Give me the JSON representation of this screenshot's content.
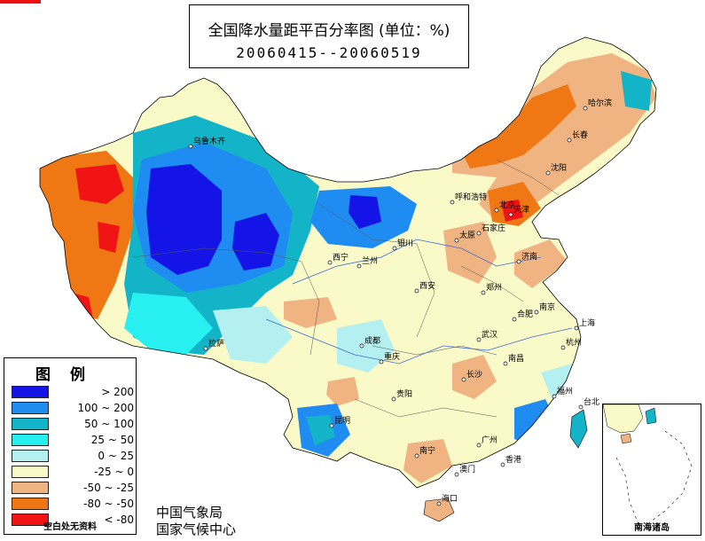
{
  "title": {
    "main": "全国降水量距平百分率图 (单位：%)",
    "period": "20060415--20060519"
  },
  "colors": {
    "gt200": "#1414e6",
    "r100_200": "#1e8cf0",
    "r50_100": "#14b4c8",
    "r25_50": "#28f0f0",
    "r0_25": "#b4f0f0",
    "rm25_0": "#fafac8",
    "rm50_m25": "#f0b482",
    "rm80_m50": "#f07814",
    "lt_m80": "#f01414"
  },
  "legend": {
    "title": "图例",
    "items": [
      {
        "label": "> 200",
        "color": "#1414e6"
      },
      {
        "label": "100 ~ 200",
        "color": "#1e8cf0"
      },
      {
        "label": "50 ~ 100",
        "color": "#14b4c8"
      },
      {
        "label": "25 ~ 50",
        "color": "#28f0f0"
      },
      {
        "label": "0 ~ 25",
        "color": "#b4f0f0"
      },
      {
        "label": "-25 ~ 0",
        "color": "#fafac8"
      },
      {
        "label": "-50 ~ -25",
        "color": "#f0b482"
      },
      {
        "label": "-80 ~ -50",
        "color": "#f07814"
      },
      {
        "label": "< -80",
        "color": "#f01414"
      }
    ],
    "footer": "空白处无资料"
  },
  "issuers": [
    "中国气象局",
    "国家气候中心"
  ],
  "inset_label": "南海诸岛",
  "cities": [
    {
      "name": "乌鲁木齐"
    },
    {
      "name": "哈尔滨"
    },
    {
      "name": "长春"
    },
    {
      "name": "沈阳"
    },
    {
      "name": "呼和浩特"
    },
    {
      "name": "北京"
    },
    {
      "name": "天津"
    },
    {
      "name": "太原"
    },
    {
      "name": "石家庄"
    },
    {
      "name": "济南"
    },
    {
      "name": "银川"
    },
    {
      "name": "西宁"
    },
    {
      "name": "兰州"
    },
    {
      "name": "西安"
    },
    {
      "name": "郑州"
    },
    {
      "name": "合肥"
    },
    {
      "name": "南京"
    },
    {
      "name": "上海"
    },
    {
      "name": "拉萨"
    },
    {
      "name": "成都"
    },
    {
      "name": "重庆"
    },
    {
      "name": "武汉"
    },
    {
      "name": "杭州"
    },
    {
      "name": "南昌"
    },
    {
      "name": "长沙"
    },
    {
      "name": "贵阳"
    },
    {
      "name": "福州"
    },
    {
      "name": "台北"
    },
    {
      "name": "昆明"
    },
    {
      "name": "南宁"
    },
    {
      "name": "广州"
    },
    {
      "name": "澳门"
    },
    {
      "name": "香港"
    },
    {
      "name": "海口"
    }
  ]
}
